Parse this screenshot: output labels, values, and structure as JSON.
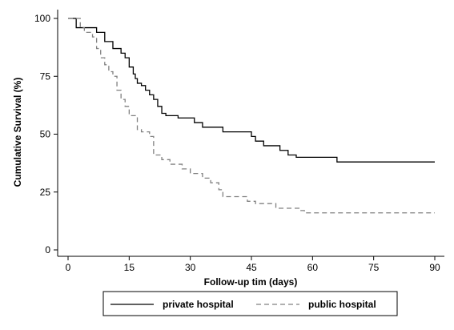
{
  "chart_data": {
    "type": "line",
    "subtype": "step",
    "xlabel": "Follow-up tim (days)",
    "ylabel": "Cumulative Survival (%)",
    "xlim": [
      0,
      90
    ],
    "ylim": [
      0,
      100
    ],
    "xticks": [
      "0",
      "15",
      "30",
      "45",
      "60",
      "75",
      "90"
    ],
    "yticks": [
      "0",
      "25",
      "50",
      "75",
      "100"
    ],
    "grid": false,
    "legend_position": "bottom",
    "series": [
      {
        "name": "private hospital",
        "line_style": "solid",
        "color": "#000000",
        "x": [
          0,
          2,
          3,
          5,
          7,
          9,
          11,
          13,
          14,
          15,
          16,
          16.5,
          17,
          18,
          19,
          20,
          21,
          22,
          23,
          24,
          27,
          31,
          33,
          35,
          38,
          45,
          46,
          48,
          52,
          54,
          56,
          66,
          90
        ],
        "y": [
          100,
          96,
          96,
          96,
          94,
          90,
          87,
          85,
          83,
          79,
          76,
          74,
          72,
          71,
          69,
          67,
          65,
          62,
          59,
          58,
          57,
          55,
          53,
          53,
          51,
          49,
          47,
          45,
          43,
          41,
          40,
          38,
          38
        ]
      },
      {
        "name": "public hospital",
        "line_style": "dashed",
        "color": "#808080",
        "x": [
          0,
          3,
          4,
          6,
          7,
          8,
          9,
          10,
          11,
          12,
          13,
          14,
          15,
          17,
          18,
          20,
          21,
          23,
          25,
          28,
          30,
          33,
          35,
          37,
          38,
          44,
          46,
          51,
          57,
          58,
          59,
          90
        ],
        "y": [
          100,
          96,
          94,
          92,
          87,
          83,
          80,
          77,
          75,
          69,
          65,
          62,
          58,
          52,
          51,
          49,
          41,
          39,
          37,
          35,
          33,
          31,
          29,
          26,
          23,
          21,
          20,
          18,
          17,
          16,
          16,
          16
        ]
      }
    ]
  }
}
